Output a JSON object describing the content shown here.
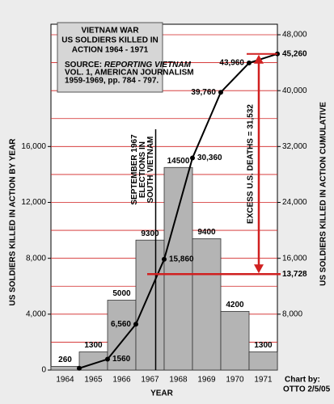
{
  "chart_data": {
    "type": "bar_line",
    "title": [
      "VIETNAM WAR",
      "US SOLDIERS KILLED IN",
      "ACTION 1964 - 1971"
    ],
    "source": {
      "prefix": "SOURCE: ",
      "work": "REPORTING VIETNAM",
      "lines": [
        "VOL. 1,  AMERICAN JOURNALISM",
        "1959-1969, pp. 784 - 797."
      ]
    },
    "x_label": "YEAR",
    "y_label": "US SOLDIERS KILLED IN ACTION BY YEAR",
    "y2_label": "US SOLDIERS KILLED IN ACTION CUMULATIVE",
    "credit": [
      "Chart by:",
      "OTTO 2/5/05"
    ],
    "categories": [
      "1964",
      "1965",
      "1966",
      "1967",
      "1968",
      "1969",
      "1970",
      "1971"
    ],
    "series": [
      {
        "type": "bar",
        "color": "#b4b4b4",
        "values": [
          260,
          1300,
          5000,
          9300,
          14500,
          9400,
          4200,
          1300
        ]
      },
      {
        "type": "line",
        "axis": "y2",
        "color": "#000000",
        "values": [
          260,
          1560,
          6560,
          15860,
          30360,
          39760,
          43960,
          45260
        ],
        "value_labels": [
          null,
          "1560",
          "6,560",
          "15,860",
          "30,360",
          "39,760",
          "43,960",
          "45,260"
        ]
      }
    ],
    "ylim": [
      0,
      24000
    ],
    "yticks": [
      {
        "value": 0,
        "label": "0"
      },
      {
        "value": 4000,
        "label": "4,000"
      },
      {
        "value": 8000,
        "label": "8,000"
      },
      {
        "value": 12000,
        "label": "12,000"
      },
      {
        "value": 16000,
        "label": "16,000"
      }
    ],
    "minor_yticks": [
      2000,
      6000,
      10000,
      14000,
      18000,
      20000,
      22000,
      24000
    ],
    "y2lim": [
      0,
      48000
    ],
    "y2ticks": [
      {
        "value": 8000,
        "label": "8,000"
      },
      {
        "value": 16000,
        "label": "16,000"
      },
      {
        "value": 24000,
        "label": "24,000"
      },
      {
        "value": 32000,
        "label": "32,000"
      },
      {
        "value": 40000,
        "label": "40,000"
      },
      {
        "value": 48000,
        "label": "48,000"
      }
    ],
    "grid_color": "#d02020",
    "event": [
      "SEPTEMBER 1967",
      "ELECTIONS IN",
      "SOUTH VIETNAM"
    ],
    "baseline": {
      "value": 13728,
      "label": "13,728"
    },
    "excess": "EXCESS U.S. DEATHS = 31,532"
  }
}
